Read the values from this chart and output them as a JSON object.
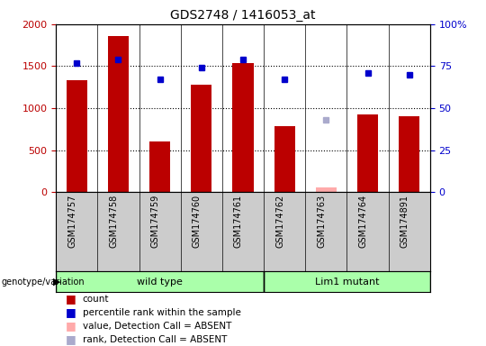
{
  "title": "GDS2748 / 1416053_at",
  "samples": [
    "GSM174757",
    "GSM174758",
    "GSM174759",
    "GSM174760",
    "GSM174761",
    "GSM174762",
    "GSM174763",
    "GSM174764",
    "GSM174891"
  ],
  "counts": [
    1330,
    1860,
    600,
    1280,
    1540,
    790,
    null,
    930,
    900
  ],
  "counts_absent": [
    null,
    null,
    null,
    null,
    null,
    null,
    60,
    null,
    null
  ],
  "percentile_ranks": [
    77,
    79,
    67,
    74,
    79,
    67,
    null,
    71,
    70
  ],
  "percentile_ranks_absent": [
    null,
    null,
    null,
    null,
    null,
    null,
    43,
    null,
    null
  ],
  "groups": [
    {
      "label": "wild type",
      "indices": [
        0,
        1,
        2,
        3,
        4
      ]
    },
    {
      "label": "Lim1 mutant",
      "indices": [
        5,
        6,
        7,
        8
      ]
    }
  ],
  "group_label": "genotype/variation",
  "left_ylim": [
    0,
    2000
  ],
  "right_ylim": [
    0,
    100
  ],
  "left_yticks": [
    0,
    500,
    1000,
    1500,
    2000
  ],
  "left_yticklabels": [
    "0",
    "500",
    "1000",
    "1500",
    "2000"
  ],
  "right_yticks": [
    0,
    25,
    50,
    75,
    100
  ],
  "right_yticklabels": [
    "0",
    "25",
    "50",
    "75",
    "100%"
  ],
  "bar_color": "#bb0000",
  "bar_absent_color": "#ffaaaa",
  "dot_color": "#0000cc",
  "dot_absent_color": "#aaaacc",
  "grid_color": "#000000",
  "group_bg_color": "#aaffaa",
  "tick_label_area_color": "#cccccc",
  "legend_items": [
    {
      "label": "count",
      "color": "#bb0000"
    },
    {
      "label": "percentile rank within the sample",
      "color": "#0000cc"
    },
    {
      "label": "value, Detection Call = ABSENT",
      "color": "#ffaaaa"
    },
    {
      "label": "rank, Detection Call = ABSENT",
      "color": "#aaaacc"
    }
  ]
}
